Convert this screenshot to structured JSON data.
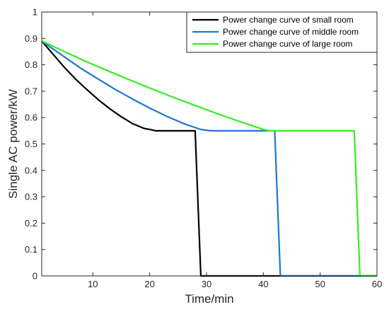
{
  "chart_data": {
    "type": "line",
    "xlabel": "Time/min",
    "ylabel": "Single AC power/kW",
    "xlim": [
      1,
      60
    ],
    "ylim": [
      0,
      1
    ],
    "xticks": [
      10,
      20,
      30,
      40,
      50,
      60
    ],
    "yticks": [
      0,
      0.1,
      0.2,
      0.3,
      0.4,
      0.5,
      0.6,
      0.7,
      0.8,
      0.9,
      1
    ],
    "grid": false,
    "legend_position": "top-right",
    "series": [
      {
        "name": "Power change curve of small room",
        "color": "#000000",
        "x": [
          1,
          3,
          5,
          7,
          9,
          11,
          13,
          15,
          17,
          19,
          20,
          21,
          28,
          29,
          29.5,
          60
        ],
        "y": [
          0.89,
          0.84,
          0.79,
          0.745,
          0.705,
          0.667,
          0.633,
          0.603,
          0.577,
          0.559,
          0.555,
          0.55,
          0.55,
          0.0,
          0.0,
          0.0
        ]
      },
      {
        "name": "Power change curve of middle room",
        "color": "#1f77d0",
        "x": [
          1,
          3,
          5,
          8,
          11,
          14,
          17,
          20,
          23,
          26,
          29,
          30,
          31,
          42,
          43,
          44,
          60
        ],
        "y": [
          0.89,
          0.86,
          0.83,
          0.785,
          0.745,
          0.706,
          0.67,
          0.636,
          0.605,
          0.577,
          0.555,
          0.552,
          0.55,
          0.55,
          0.0,
          0.0,
          0.0
        ]
      },
      {
        "name": "Power change curve of large room",
        "color": "#33ee22",
        "x": [
          1,
          4,
          8,
          12,
          16,
          20,
          24,
          28,
          32,
          36,
          40,
          41,
          56,
          57,
          60
        ],
        "y": [
          0.89,
          0.86,
          0.82,
          0.783,
          0.747,
          0.712,
          0.678,
          0.646,
          0.614,
          0.584,
          0.555,
          0.55,
          0.55,
          0.0,
          0.0
        ]
      }
    ]
  }
}
